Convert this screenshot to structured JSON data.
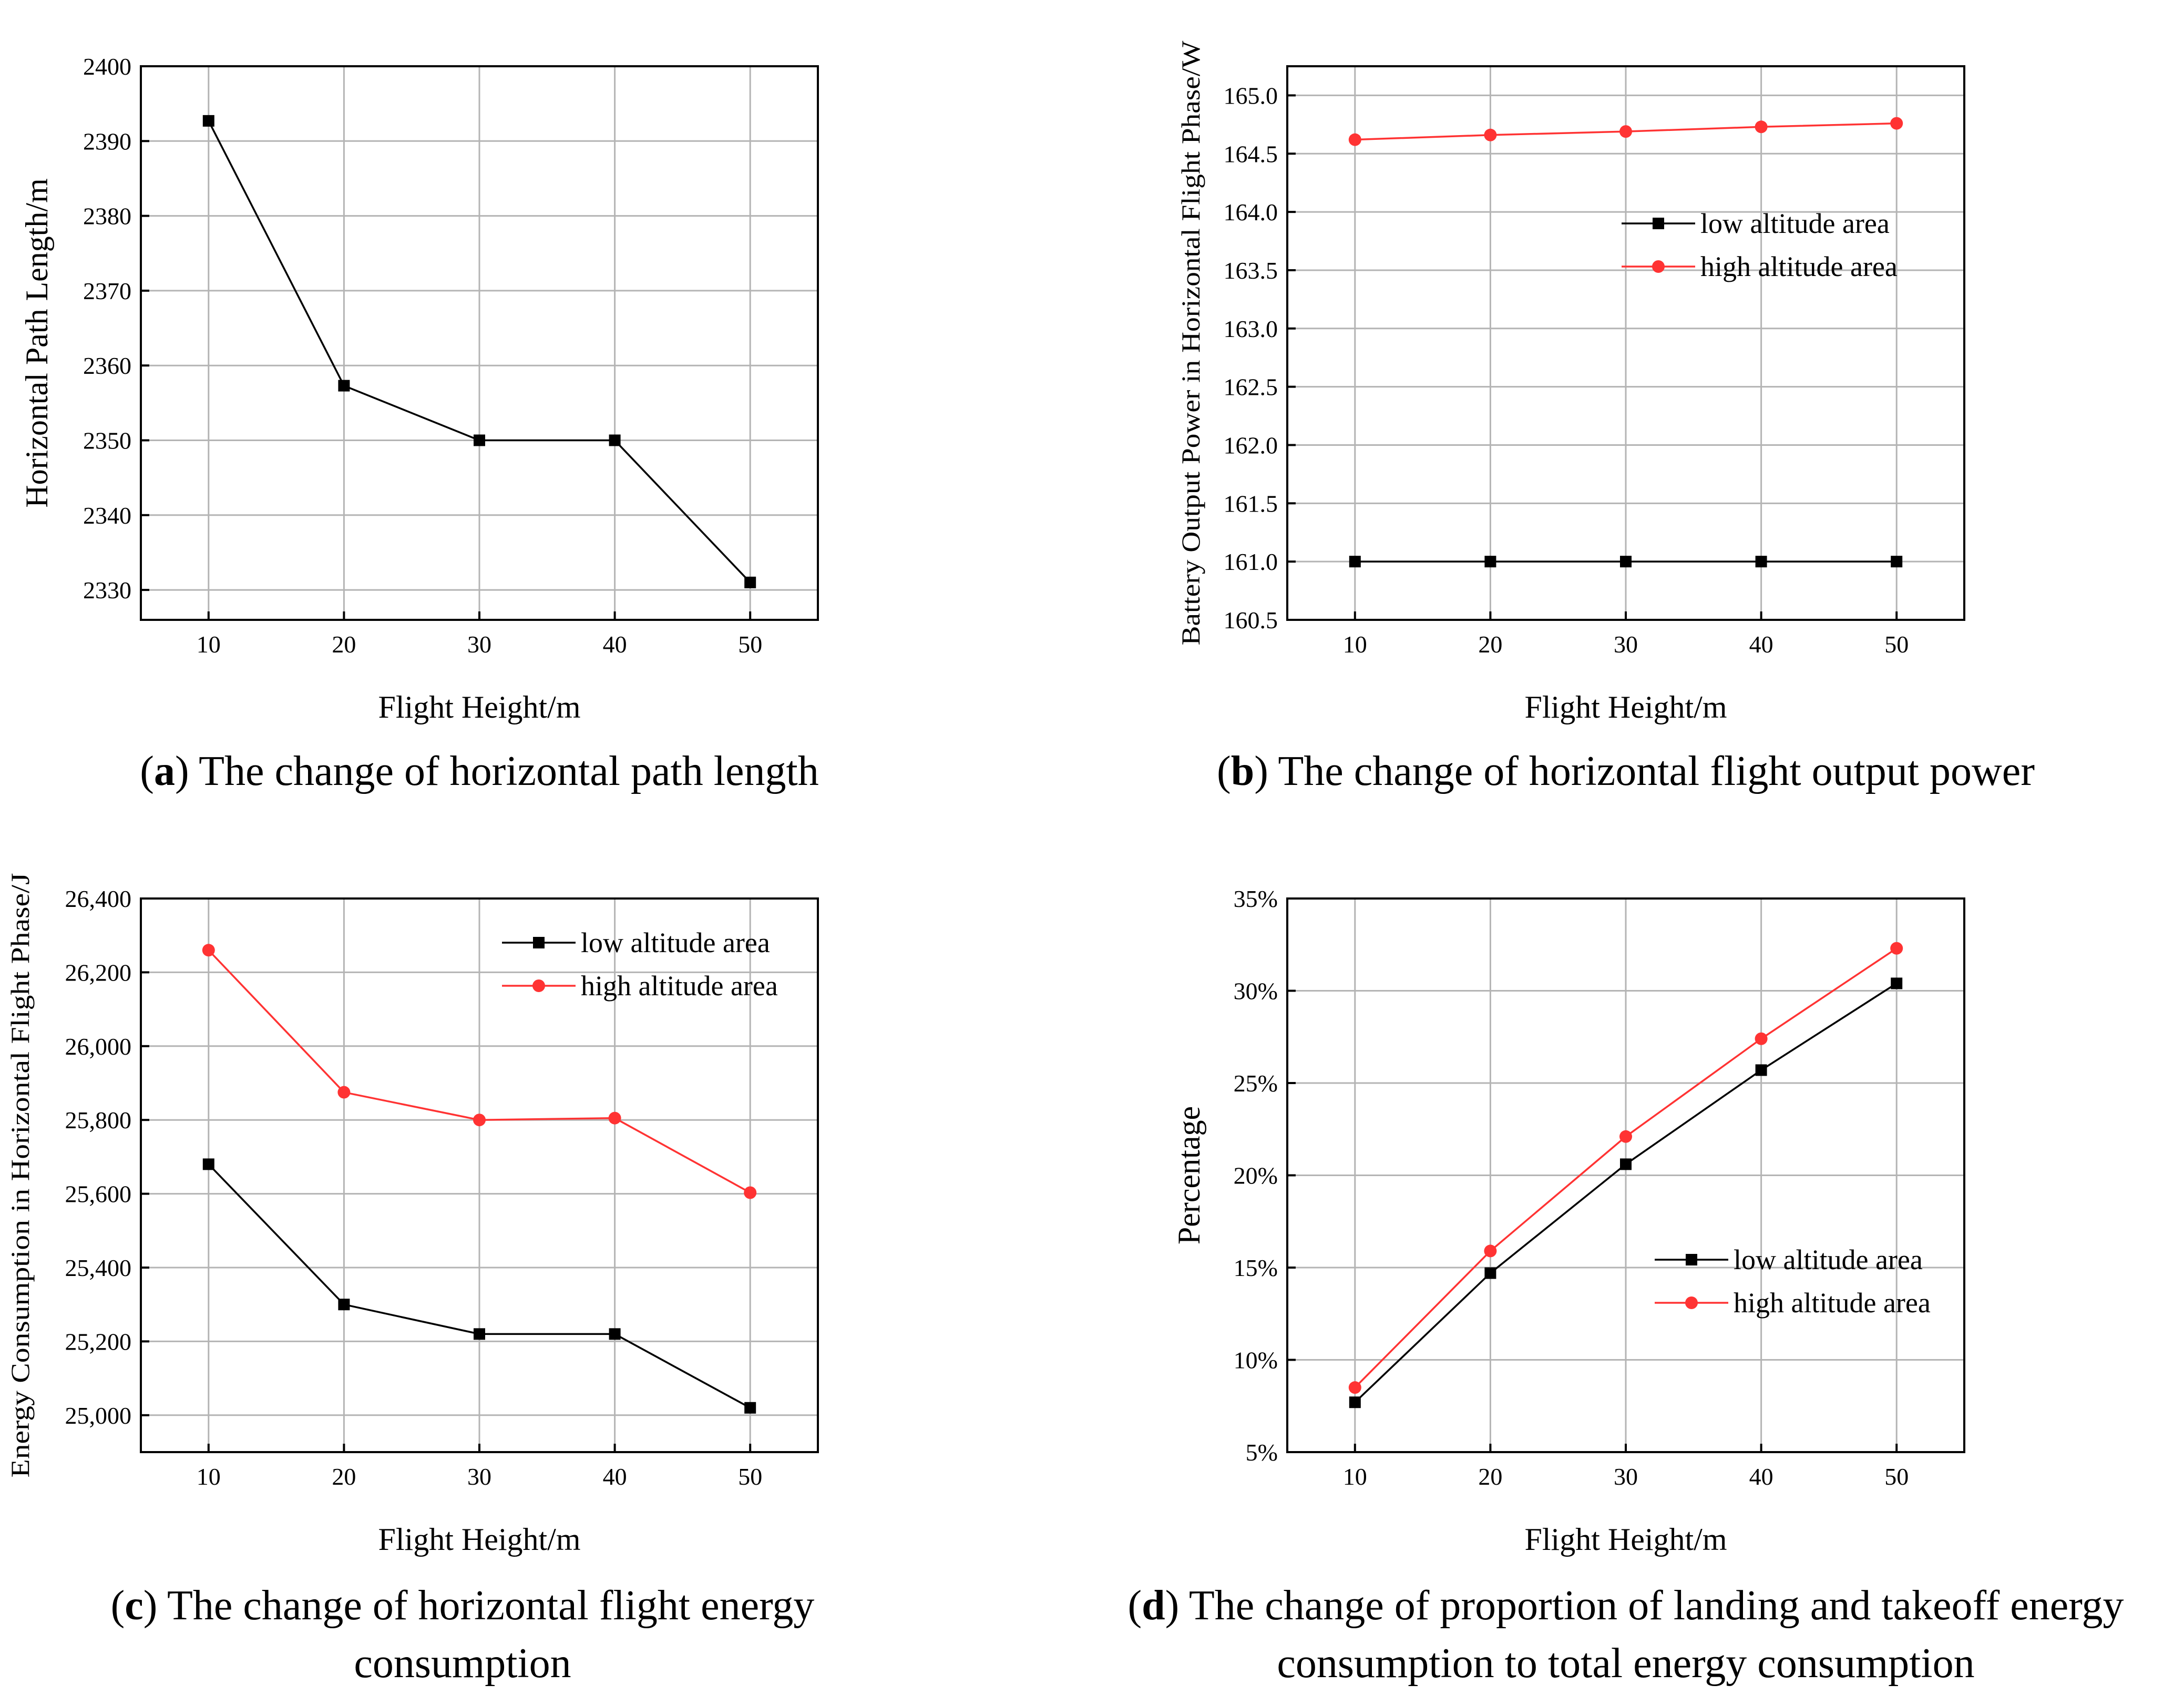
{
  "chart_data": [
    {
      "type": "line",
      "panel": "a",
      "caption_letter": "a",
      "caption_text": "The change of horizontal path length",
      "caption_lines": [],
      "xlabel": "Flight Height/m",
      "ylabel": "Horizontal Path Length/m",
      "x": [
        10,
        20,
        30,
        40,
        50
      ],
      "x_ticks": [
        "10",
        "20",
        "30",
        "40",
        "50"
      ],
      "xlim": [
        5,
        55
      ],
      "ylim": [
        2326,
        2400
      ],
      "y_ticks": [
        2330,
        2340,
        2350,
        2360,
        2370,
        2380,
        2390,
        2400
      ],
      "y_tick_labels": [
        "2330",
        "2340",
        "2350",
        "2360",
        "2370",
        "2380",
        "2390",
        "2400"
      ],
      "grid": true,
      "legend": null,
      "series": [
        {
          "name": "",
          "values": [
            2392.7,
            2357.3,
            2350.0,
            2350.0,
            2331.0
          ],
          "color": "#000000",
          "marker": "square"
        }
      ]
    },
    {
      "type": "line",
      "panel": "b",
      "caption_letter": "b",
      "caption_text": "The change of horizontal flight output power",
      "caption_lines": [],
      "xlabel": "Flight Height/m",
      "ylabel": "Battery Output Power in Horizontal Flight Phase/W",
      "x": [
        10,
        20,
        30,
        40,
        50
      ],
      "x_ticks": [
        "10",
        "20",
        "30",
        "40",
        "50"
      ],
      "xlim": [
        5,
        55
      ],
      "ylim": [
        160.5,
        165.25
      ],
      "y_ticks": [
        160.5,
        161.0,
        161.5,
        162.0,
        162.5,
        163.0,
        163.5,
        164.0,
        164.5,
        165.0
      ],
      "y_tick_labels": [
        "160.5",
        "161.0",
        "161.5",
        "162.0",
        "162.5",
        "163.0",
        "163.5",
        "164.0",
        "164.5",
        "165.0"
      ],
      "grid": true,
      "legend": "center-right",
      "series": [
        {
          "name": "low altitude area",
          "values": [
            161.0,
            161.0,
            161.0,
            161.0,
            161.0
          ],
          "color": "#000000",
          "marker": "square"
        },
        {
          "name": "high altitude area",
          "values": [
            164.62,
            164.66,
            164.69,
            164.73,
            164.76
          ],
          "color": "#ff3333",
          "marker": "circle"
        }
      ]
    },
    {
      "type": "line",
      "panel": "c",
      "caption_letter": "c",
      "caption_text": "",
      "caption_lines": [
        "The change of horizontal flight energy",
        "consumption"
      ],
      "xlabel": "Flight Height/m",
      "ylabel": "Energy Consumption in Horizontal Flight Phase/J",
      "x": [
        10,
        20,
        30,
        40,
        50
      ],
      "x_ticks": [
        "10",
        "20",
        "30",
        "40",
        "50"
      ],
      "xlim": [
        5,
        55
      ],
      "ylim": [
        24900,
        26400
      ],
      "y_ticks": [
        25000,
        25200,
        25400,
        25600,
        25800,
        26000,
        26200,
        26400
      ],
      "y_tick_labels": [
        "25,000",
        "25,200",
        "25,400",
        "25,600",
        "25,800",
        "26,000",
        "26,200",
        "26,400"
      ],
      "grid": true,
      "legend": "top-right",
      "series": [
        {
          "name": "low altitude area",
          "values": [
            25680,
            25300,
            25220,
            25220,
            25020
          ],
          "color": "#000000",
          "marker": "square"
        },
        {
          "name": "high altitude area",
          "values": [
            26260,
            25875,
            25800,
            25805,
            25603
          ],
          "color": "#ff3333",
          "marker": "circle"
        }
      ]
    },
    {
      "type": "line",
      "panel": "d",
      "caption_letter": "d",
      "caption_text": "",
      "caption_lines": [
        "The change of proportion of landing and takeoff energy",
        "consumption to total energy consumption"
      ],
      "xlabel": "Flight Height/m",
      "ylabel": "Percentage",
      "x": [
        10,
        20,
        30,
        40,
        50
      ],
      "x_ticks": [
        "10",
        "20",
        "30",
        "40",
        "50"
      ],
      "xlim": [
        5,
        55
      ],
      "ylim": [
        5,
        35
      ],
      "y_ticks": [
        5,
        10,
        15,
        20,
        25,
        30,
        35
      ],
      "y_tick_labels": [
        "5%",
        "10%",
        "15%",
        "20%",
        "25%",
        "30%",
        "35%"
      ],
      "grid": true,
      "legend": "center-right",
      "series": [
        {
          "name": "low altitude area",
          "values": [
            7.7,
            14.7,
            20.6,
            25.7,
            30.4
          ],
          "color": "#000000",
          "marker": "square"
        },
        {
          "name": "high altitude area",
          "values": [
            8.5,
            15.9,
            22.1,
            27.4,
            32.3
          ],
          "color": "#ff3333",
          "marker": "circle"
        }
      ]
    }
  ]
}
